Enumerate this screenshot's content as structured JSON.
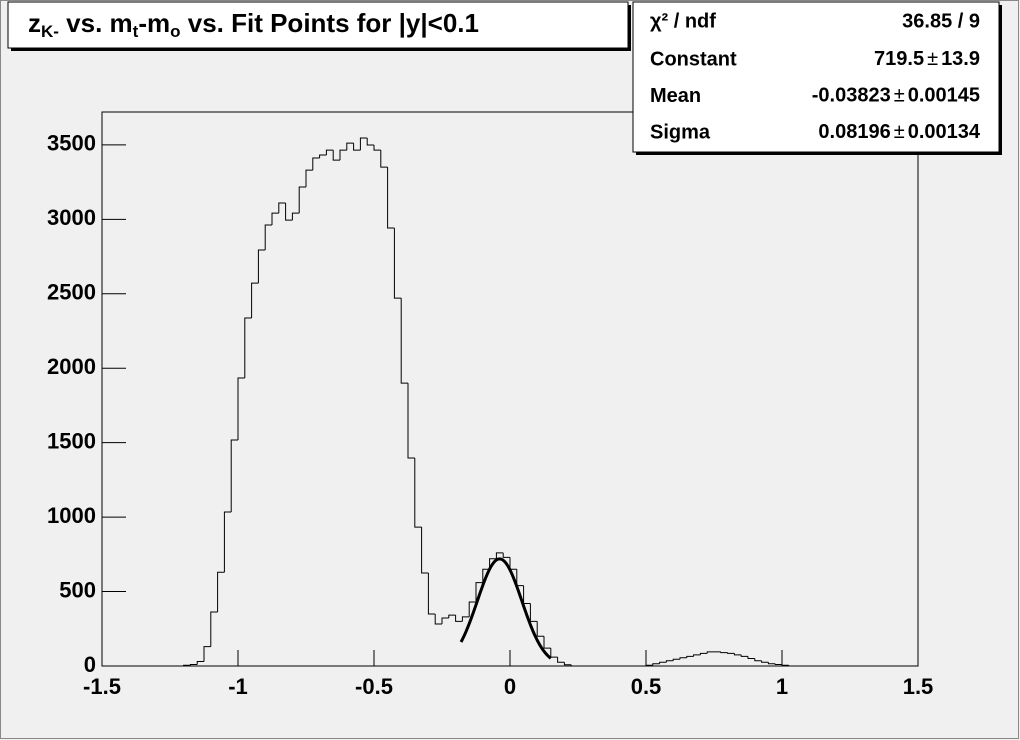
{
  "chart_data": {
    "type": "histogram",
    "title_parts": [
      {
        "text": "z"
      },
      {
        "text": "K-",
        "sub": true
      },
      {
        "text": " vs. m"
      },
      {
        "text": "t",
        "sub": true
      },
      {
        "text": "-m"
      },
      {
        "text": "o",
        "sub": true
      },
      {
        "text": " vs. Fit Points for |y|<0.1"
      }
    ],
    "bins": [
      -1.5,
      -1.475,
      -1.45,
      -1.425,
      -1.4,
      -1.375,
      -1.35,
      -1.325,
      -1.3,
      -1.275,
      -1.25,
      -1.225,
      -1.2,
      -1.175,
      -1.15,
      -1.125,
      -1.1,
      -1.075,
      -1.05,
      -1.025,
      -1,
      -0.975,
      -0.95,
      -0.925,
      -0.9,
      -0.875,
      -0.85,
      -0.825,
      -0.8,
      -0.775,
      -0.75,
      -0.725,
      -0.7,
      -0.675,
      -0.65,
      -0.625,
      -0.6,
      -0.575,
      -0.55,
      -0.525,
      -0.5,
      -0.475,
      -0.45,
      -0.425,
      -0.4,
      -0.375,
      -0.35,
      -0.325,
      -0.3,
      -0.275,
      -0.25,
      -0.225,
      -0.2,
      -0.175,
      -0.15,
      -0.125,
      -0.1,
      -0.075,
      -0.05,
      -0.025,
      0,
      0.025,
      0.05,
      0.075,
      0.1,
      0.125,
      0.15,
      0.175,
      0.2,
      0.225,
      0.25,
      0.275,
      0.3,
      0.325,
      0.35,
      0.375,
      0.4,
      0.425,
      0.45,
      0.475,
      0.5,
      0.525,
      0.55,
      0.575,
      0.6,
      0.625,
      0.65,
      0.675,
      0.7,
      0.725,
      0.75,
      0.775,
      0.8,
      0.825,
      0.85,
      0.875,
      0.9,
      0.925,
      0.95,
      0.975,
      1,
      1.025,
      1.05,
      1.075,
      1.1,
      1.125,
      1.15,
      1.175,
      1.2,
      1.225,
      1.25,
      1.275,
      1.3,
      1.325,
      1.35,
      1.375,
      1.4,
      1.425,
      1.45,
      1.475,
      1.5
    ],
    "values": [
      0,
      0,
      0,
      0,
      0,
      0,
      0,
      0,
      0,
      0,
      0,
      0,
      5,
      10,
      30,
      130,
      363,
      630,
      1034,
      1518,
      1934,
      2337,
      2572,
      2794,
      2962,
      3042,
      3110,
      2995,
      3042,
      3217,
      3331,
      3412,
      3432,
      3465,
      3398,
      3465,
      3512,
      3465,
      3546,
      3499,
      3465,
      3351,
      2942,
      2471,
      1900,
      1397,
      933,
      625,
      349,
      282,
      322,
      342,
      300,
      330,
      430,
      560,
      650,
      720,
      760,
      730,
      650,
      540,
      420,
      300,
      200,
      120,
      60,
      25,
      8,
      0,
      0,
      0,
      0,
      0,
      0,
      0,
      0,
      0,
      0,
      0,
      5,
      15,
      25,
      35,
      45,
      55,
      65,
      75,
      85,
      95,
      95,
      90,
      85,
      75,
      65,
      50,
      35,
      25,
      15,
      10,
      5,
      0,
      0,
      0,
      0,
      0,
      0,
      0,
      0,
      0,
      0,
      0,
      0,
      0,
      0,
      0,
      0,
      0,
      0,
      0
    ],
    "color": "#000000",
    "xlim": [
      -1.5,
      1.5
    ],
    "ylim": [
      0,
      3721
    ],
    "xticks": [
      -1.5,
      -1,
      -0.5,
      0,
      0.5,
      1,
      1.5
    ],
    "yticks": [
      0,
      500,
      1000,
      1500,
      2000,
      2500,
      3000,
      3500
    ],
    "fit_range": [
      -0.18,
      0.15
    ],
    "stats": {
      "chi2_label": "χ² / ndf",
      "chi2_ndf": "36.85 / 9",
      "plus_minus": "±",
      "rows": [
        {
          "label": "Constant",
          "value": 719.5,
          "error": 13.9
        },
        {
          "label": "Mean",
          "value": -0.03823,
          "error": 0.00145
        },
        {
          "label": "Sigma",
          "value": 0.08196,
          "error": 0.00134
        }
      ]
    }
  }
}
